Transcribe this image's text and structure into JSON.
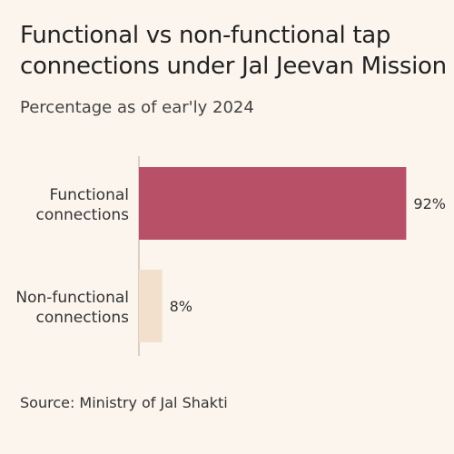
{
  "chart_data": {
    "type": "bar",
    "orientation": "horizontal",
    "title": "Functional vs non-functional tap connections under Jal Jeevan Mission",
    "subtitle": "Percentage  as of ear'ly 2024",
    "categories": [
      "Functional connections",
      "Non-functional connections"
    ],
    "category_lines": [
      [
        "Functional",
        "connections"
      ],
      [
        "Non-functional",
        "connections"
      ]
    ],
    "values": [
      92,
      8
    ],
    "value_labels": [
      "92%",
      "8%"
    ],
    "xlim": [
      0,
      100
    ],
    "grid": false,
    "colors": [
      "#b85068",
      "#f3e0cc"
    ],
    "source": "Source: Ministry of Jal Shakti"
  }
}
